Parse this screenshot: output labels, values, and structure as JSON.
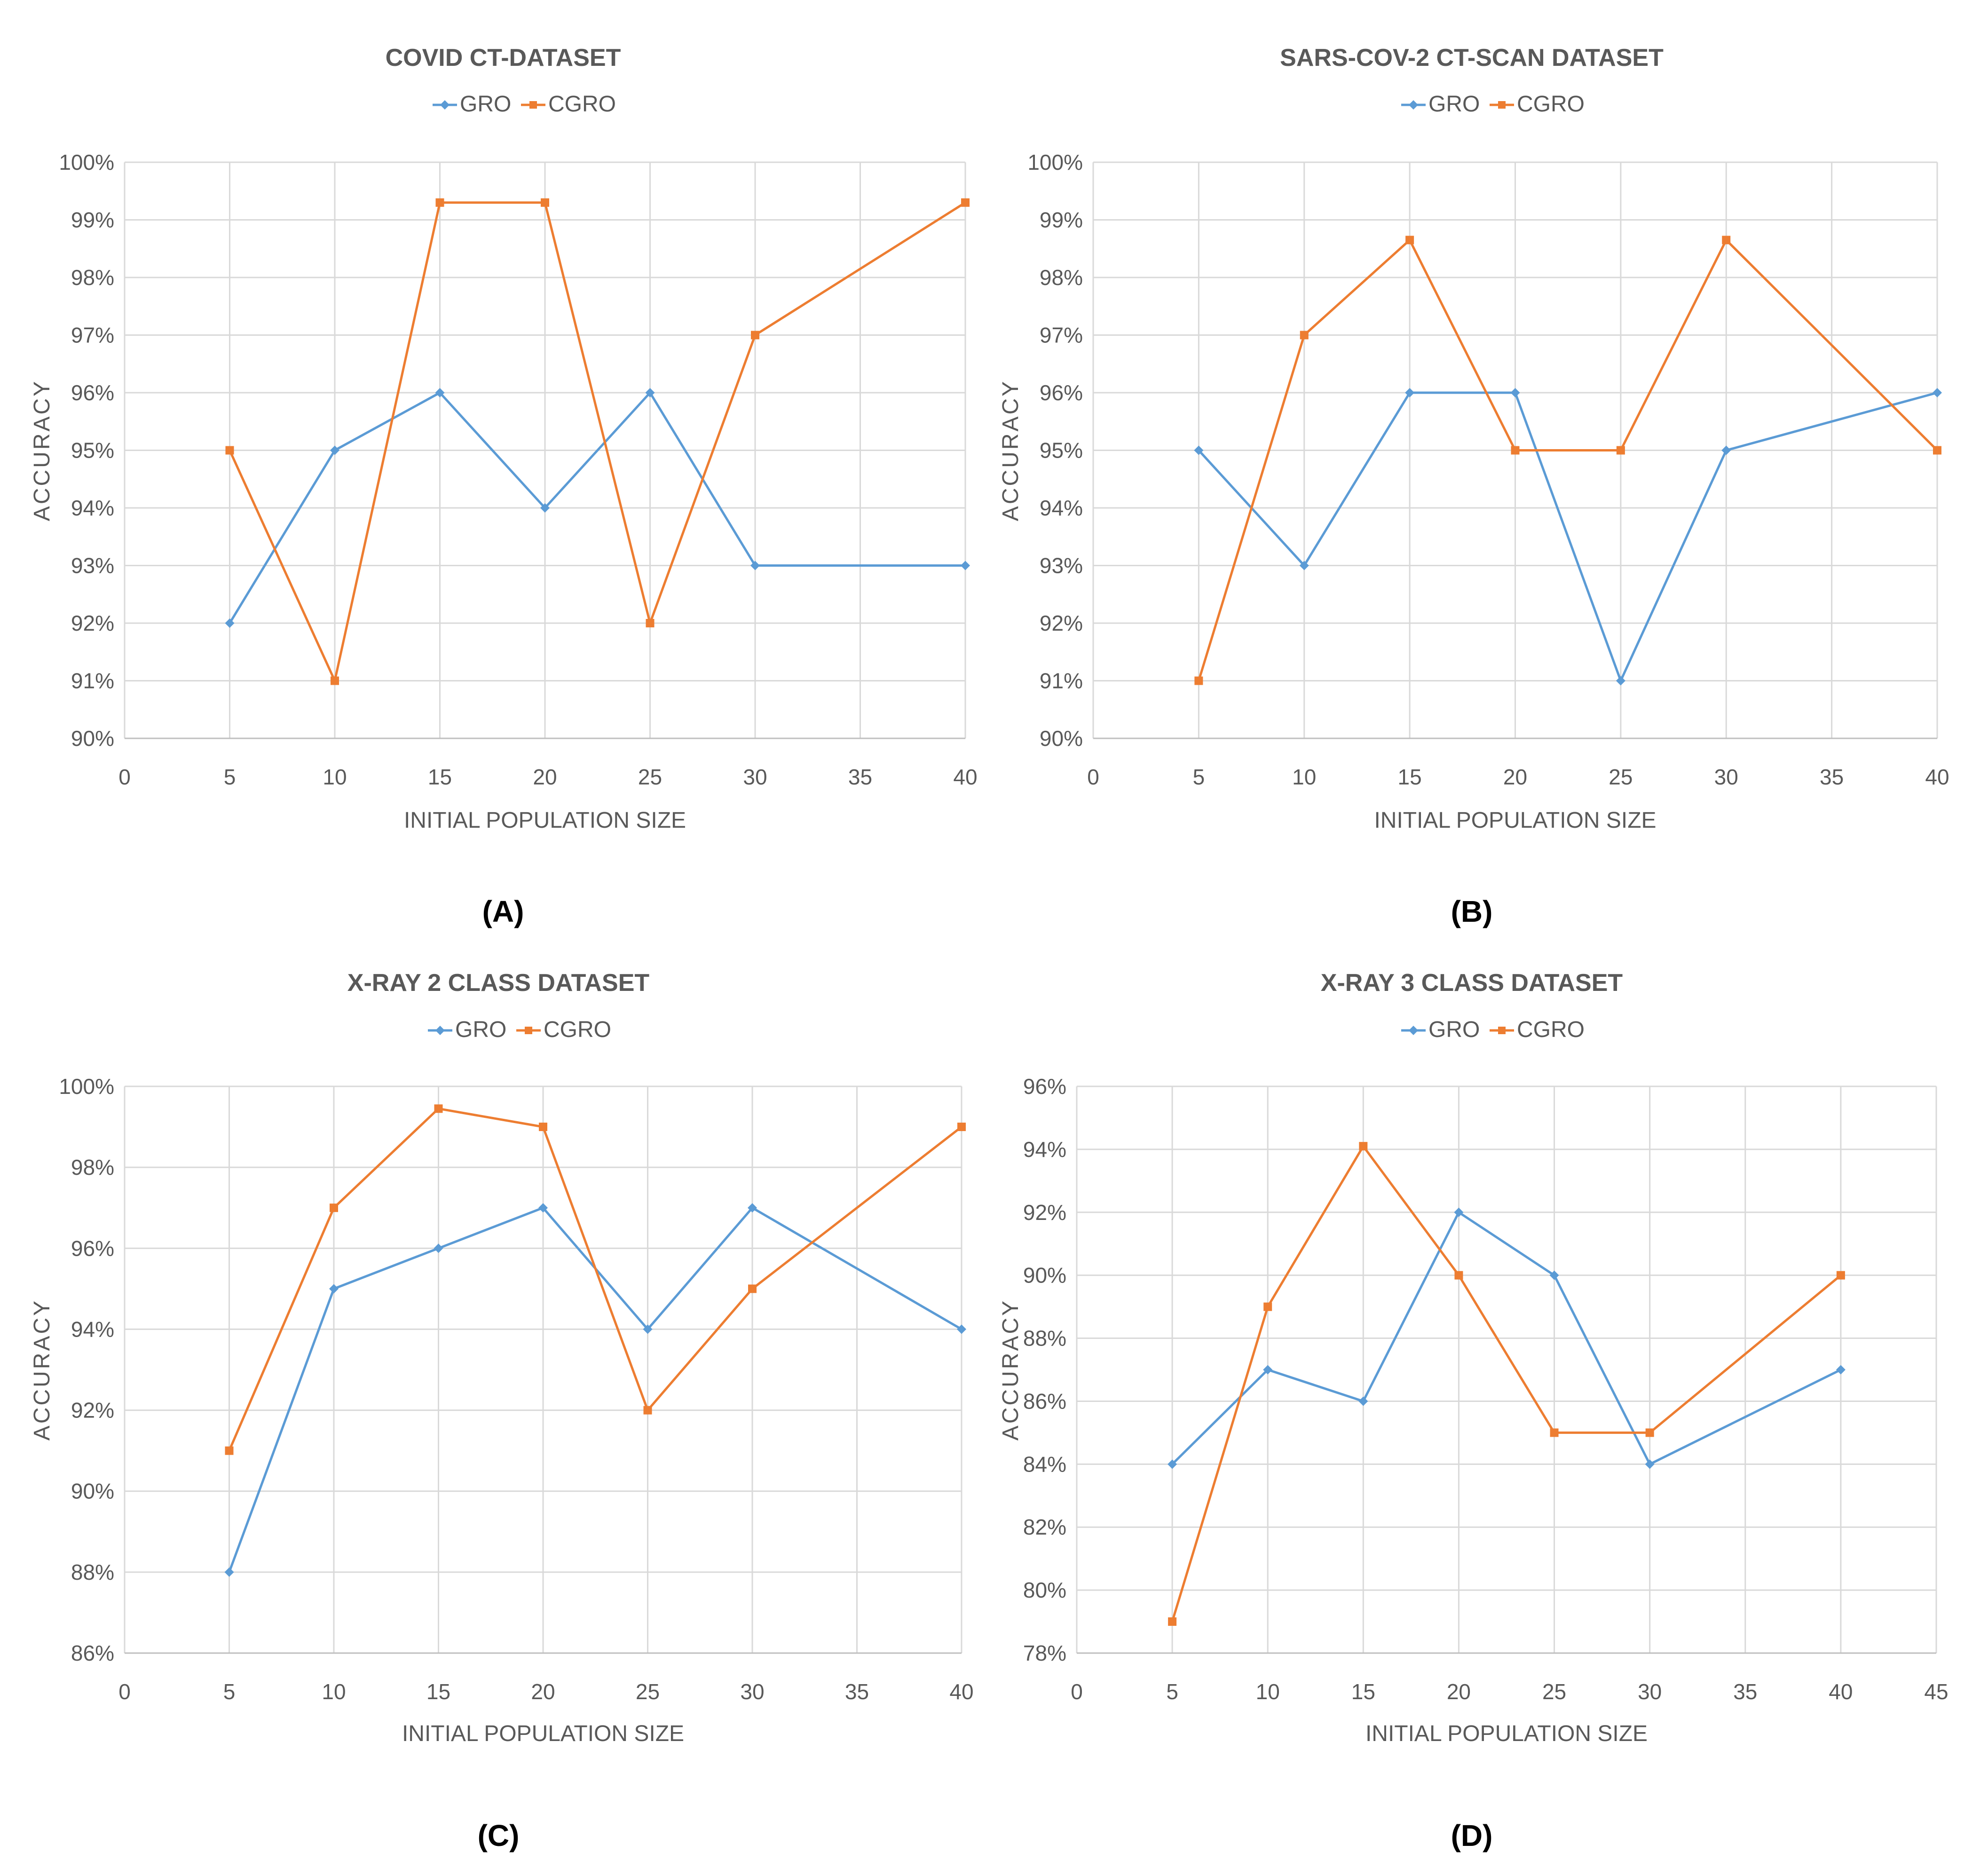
{
  "colors": {
    "GRO": "#5B9BD5",
    "CGRO": "#ED7D31",
    "grid": "#D9D9D9",
    "text": "#595959"
  },
  "chart_data": [
    {
      "type": "line",
      "panel_label": "(A)",
      "title": "COVID CT-DATASET",
      "xlabel": "INITIAL POPULATION SIZE",
      "ylabel": "ACCURACY",
      "xlim": [
        0,
        40
      ],
      "xticks": [
        0,
        5,
        10,
        15,
        20,
        25,
        30,
        35,
        40
      ],
      "ylim": [
        90,
        100
      ],
      "yticks": [
        90,
        91,
        92,
        93,
        94,
        95,
        96,
        97,
        98,
        99,
        100
      ],
      "y_format": "percent",
      "legend": "top-center",
      "series": [
        {
          "name": "GRO",
          "x": [
            5,
            10,
            15,
            20,
            25,
            30,
            40
          ],
          "values": [
            92,
            95,
            96,
            94,
            96,
            93,
            93
          ]
        },
        {
          "name": "CGRO",
          "x": [
            5,
            10,
            15,
            20,
            25,
            30,
            40
          ],
          "values": [
            95,
            91,
            99.3,
            99.3,
            92,
            97,
            99.3
          ]
        }
      ]
    },
    {
      "type": "line",
      "panel_label": "(B)",
      "title": "SARS-COV-2 CT-SCAN DATASET",
      "xlabel": "INITIAL POPULATION SIZE",
      "ylabel": "ACCURACY",
      "xlim": [
        0,
        40
      ],
      "xticks": [
        0,
        5,
        10,
        15,
        20,
        25,
        30,
        35,
        40
      ],
      "ylim": [
        90,
        100
      ],
      "yticks": [
        90,
        91,
        92,
        93,
        94,
        95,
        96,
        97,
        98,
        99,
        100
      ],
      "y_format": "percent",
      "legend": "top-center",
      "series": [
        {
          "name": "GRO",
          "x": [
            5,
            10,
            15,
            20,
            25,
            30,
            40
          ],
          "values": [
            95,
            93,
            96,
            96,
            91,
            95,
            96
          ]
        },
        {
          "name": "CGRO",
          "x": [
            5,
            10,
            15,
            20,
            25,
            30,
            40
          ],
          "values": [
            91,
            97,
            98.65,
            95,
            95,
            98.65,
            95
          ]
        }
      ]
    },
    {
      "type": "line",
      "panel_label": "(C)",
      "title": "X-RAY 2 CLASS DATASET",
      "xlabel": "INITIAL POPULATION SIZE",
      "ylabel": "ACCURACY",
      "xlim": [
        0,
        40
      ],
      "xticks": [
        0,
        5,
        10,
        15,
        20,
        25,
        30,
        35,
        40
      ],
      "ylim": [
        86,
        100
      ],
      "yticks": [
        86,
        88,
        90,
        92,
        94,
        96,
        98,
        100
      ],
      "y_format": "percent",
      "legend": "top-center",
      "series": [
        {
          "name": "GRO",
          "x": [
            5,
            10,
            15,
            20,
            25,
            30,
            40
          ],
          "values": [
            88,
            95,
            96,
            97,
            94,
            97,
            94
          ]
        },
        {
          "name": "CGRO",
          "x": [
            5,
            10,
            15,
            20,
            25,
            30,
            40
          ],
          "values": [
            91,
            97,
            99.45,
            99,
            92,
            95,
            99
          ]
        }
      ]
    },
    {
      "type": "line",
      "panel_label": "(D)",
      "title": "X-RAY 3 CLASS DATASET",
      "xlabel": "INITIAL POPULATION SIZE",
      "ylabel": "ACCURACY",
      "xlim": [
        0,
        45
      ],
      "xticks": [
        0,
        5,
        10,
        15,
        20,
        25,
        30,
        35,
        40,
        45
      ],
      "ylim": [
        78,
        96
      ],
      "yticks": [
        78,
        80,
        82,
        84,
        86,
        88,
        90,
        92,
        94,
        96
      ],
      "y_format": "percent",
      "legend": "top-center",
      "series": [
        {
          "name": "GRO",
          "x": [
            5,
            10,
            15,
            20,
            25,
            30,
            40
          ],
          "values": [
            84,
            87,
            86,
            92,
            90,
            84,
            87
          ]
        },
        {
          "name": "CGRO",
          "x": [
            5,
            10,
            15,
            20,
            25,
            30,
            40
          ],
          "values": [
            79,
            89,
            94.1,
            90,
            85,
            85,
            90
          ]
        }
      ]
    }
  ]
}
